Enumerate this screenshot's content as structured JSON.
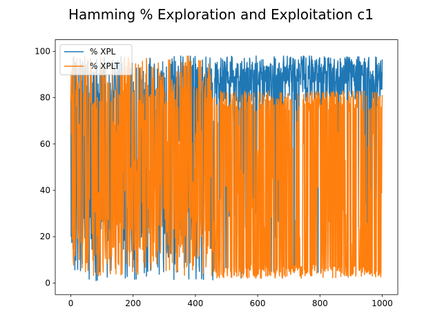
{
  "chart_data": {
    "type": "line",
    "title": "Hamming % Exploration and Exploitation c1",
    "xlabel": "",
    "ylabel": "",
    "xlim": [
      -50,
      1050
    ],
    "ylim": [
      -5,
      105
    ],
    "x_ticks": [
      0,
      200,
      400,
      600,
      800,
      1000
    ],
    "y_ticks": [
      0,
      20,
      40,
      60,
      80,
      100
    ],
    "x_tick_labels": [
      "0",
      "200",
      "400",
      "600",
      "800",
      "1000"
    ],
    "y_tick_labels": [
      "0",
      "20",
      "40",
      "60",
      "80",
      "100"
    ],
    "grid": false,
    "legend_position": "upper left",
    "x_range": [
      0,
      1000
    ],
    "series": [
      {
        "name": "% XPL",
        "color": "#1f77b4",
        "segments": [
          {
            "x_from": 0,
            "x_to": 460,
            "values_range": [
              1,
              98
            ],
            "pattern": "noisy full range oscillation"
          },
          {
            "x_from": 460,
            "x_to": 1000,
            "values_range": [
              2,
              98
            ],
            "pattern": "mostly high around 80-98 with frequent drops"
          }
        ],
        "samples": [
          [
            0,
            72
          ],
          [
            20,
            10
          ],
          [
            40,
            95
          ],
          [
            60,
            15
          ],
          [
            80,
            90
          ],
          [
            100,
            12
          ],
          [
            120,
            97
          ],
          [
            140,
            8
          ],
          [
            160,
            85
          ],
          [
            180,
            20
          ],
          [
            200,
            95
          ],
          [
            220,
            5
          ],
          [
            240,
            88
          ],
          [
            260,
            18
          ],
          [
            280,
            92
          ],
          [
            300,
            10
          ],
          [
            320,
            80
          ],
          [
            340,
            15
          ],
          [
            360,
            90
          ],
          [
            380,
            8
          ],
          [
            400,
            85
          ],
          [
            420,
            12
          ],
          [
            440,
            95
          ],
          [
            460,
            20
          ],
          [
            480,
            97
          ],
          [
            500,
            85
          ],
          [
            520,
            96
          ],
          [
            540,
            88
          ],
          [
            560,
            97
          ],
          [
            580,
            20
          ],
          [
            600,
            95
          ],
          [
            620,
            85
          ],
          [
            640,
            97
          ],
          [
            660,
            80
          ],
          [
            680,
            96
          ],
          [
            700,
            85
          ],
          [
            720,
            97
          ],
          [
            740,
            82
          ],
          [
            760,
            96
          ],
          [
            780,
            84
          ],
          [
            800,
            97
          ],
          [
            820,
            80
          ],
          [
            840,
            96
          ],
          [
            860,
            83
          ],
          [
            880,
            97
          ],
          [
            900,
            82
          ],
          [
            920,
            96
          ],
          [
            940,
            80
          ],
          [
            960,
            97
          ],
          [
            980,
            82
          ],
          [
            1000,
            96
          ]
        ]
      },
      {
        "name": "% XPLT",
        "color": "#ff7f0e",
        "segments": [
          {
            "x_from": 0,
            "x_to": 460,
            "values_range": [
              0,
              98
            ],
            "pattern": "noisy full range oscillation"
          },
          {
            "x_from": 460,
            "x_to": 1000,
            "values_range": [
              2,
              84
            ],
            "pattern": "oscillating between ~2 and ~82"
          }
        ],
        "samples": [
          [
            0,
            2
          ],
          [
            20,
            80
          ],
          [
            40,
            5
          ],
          [
            60,
            90
          ],
          [
            80,
            10
          ],
          [
            100,
            85
          ],
          [
            120,
            5
          ],
          [
            140,
            95
          ],
          [
            160,
            10
          ],
          [
            180,
            90
          ],
          [
            200,
            5
          ],
          [
            220,
            96
          ],
          [
            240,
            10
          ],
          [
            260,
            92
          ],
          [
            280,
            8
          ],
          [
            300,
            90
          ],
          [
            320,
            12
          ],
          [
            340,
            95
          ],
          [
            360,
            8
          ],
          [
            380,
            88
          ],
          [
            400,
            10
          ],
          [
            420,
            90
          ],
          [
            440,
            5
          ],
          [
            460,
            82
          ],
          [
            480,
            2
          ],
          [
            500,
            80
          ],
          [
            520,
            2
          ],
          [
            540,
            82
          ],
          [
            560,
            2
          ],
          [
            580,
            81
          ],
          [
            600,
            5
          ],
          [
            620,
            80
          ],
          [
            640,
            2
          ],
          [
            660,
            78
          ],
          [
            680,
            2
          ],
          [
            700,
            80
          ],
          [
            720,
            2
          ],
          [
            740,
            78
          ],
          [
            760,
            2
          ],
          [
            780,
            80
          ],
          [
            800,
            2
          ],
          [
            820,
            79
          ],
          [
            840,
            2
          ],
          [
            860,
            80
          ],
          [
            880,
            2
          ],
          [
            900,
            78
          ],
          [
            920,
            2
          ],
          [
            940,
            80
          ],
          [
            960,
            2
          ],
          [
            980,
            78
          ],
          [
            1000,
            2
          ]
        ]
      }
    ]
  }
}
